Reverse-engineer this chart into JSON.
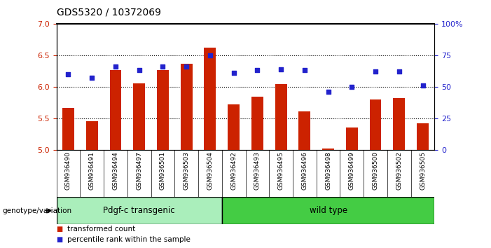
{
  "title": "GDS5320 / 10372069",
  "categories": [
    "GSM936490",
    "GSM936491",
    "GSM936494",
    "GSM936497",
    "GSM936501",
    "GSM936503",
    "GSM936504",
    "GSM936492",
    "GSM936493",
    "GSM936495",
    "GSM936496",
    "GSM936498",
    "GSM936499",
    "GSM936500",
    "GSM936502",
    "GSM936505"
  ],
  "bar_values": [
    5.67,
    5.46,
    6.27,
    6.05,
    6.27,
    6.37,
    6.62,
    5.72,
    5.84,
    6.04,
    5.61,
    5.02,
    5.36,
    5.8,
    5.82,
    5.42
  ],
  "dot_values": [
    60,
    57,
    66,
    63,
    66,
    66,
    75,
    61,
    63,
    64,
    63,
    46,
    50,
    62,
    62,
    51
  ],
  "ylim_left": [
    5.0,
    7.0
  ],
  "ylim_right": [
    0,
    100
  ],
  "yticks_left": [
    5.0,
    5.5,
    6.0,
    6.5,
    7.0
  ],
  "yticks_right": [
    0,
    25,
    50,
    75,
    100
  ],
  "ytick_labels_right": [
    "0",
    "25",
    "50",
    "75",
    "100%"
  ],
  "bar_color": "#cc2200",
  "dot_color": "#2222cc",
  "bar_bottom": 5.0,
  "group1_label": "Pdgf-c transgenic",
  "group2_label": "wild type",
  "group1_count": 7,
  "group2_count": 9,
  "group1_color": "#aaeebb",
  "group2_color": "#44cc44",
  "legend_bar_label": "transformed count",
  "legend_dot_label": "percentile rank within the sample",
  "xlabel_left": "genotype/variation",
  "bg_color": "#ffffff",
  "plot_bg": "#ffffff",
  "tick_label_color_left": "#cc2200",
  "tick_label_color_right": "#2222cc",
  "xticklabel_bg": "#cccccc",
  "grid_yticks": [
    5.5,
    6.0,
    6.5
  ]
}
